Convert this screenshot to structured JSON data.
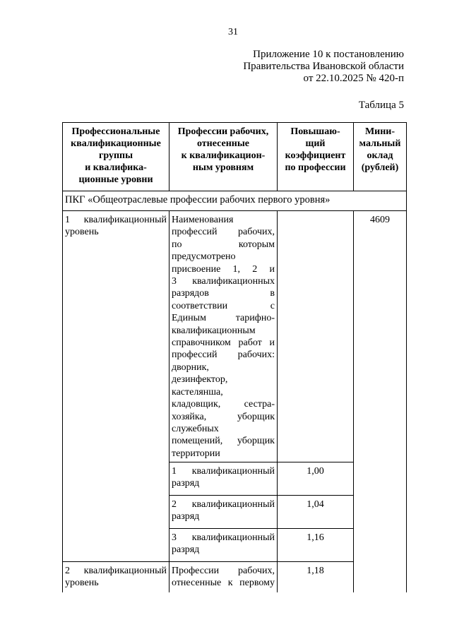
{
  "page_number": "31",
  "header": {
    "lines": [
      "Приложение 10 к постановлению",
      "Правительства Ивановской области",
      "от 22.10.2025 № 420-п"
    ]
  },
  "table_label": "Таблица 5",
  "table": {
    "columns": [
      [
        "Профессиональные",
        "квалификационные",
        "группы",
        "и квалифика-",
        "ционные уровни"
      ],
      [
        "Профессии рабочих,",
        "отнесенные",
        "к квалификацион-",
        "ным уровням"
      ],
      [
        "Повышаю-",
        "щий",
        "коэффициент",
        "по профессии"
      ],
      [
        "Мини-",
        "мальный",
        "оклад",
        "(рублей)"
      ]
    ],
    "group_title": "ПКГ «Общеотраслевые профессии рабочих первого уровня»",
    "level1": {
      "name": [
        "1 квалификационный",
        "уровень"
      ],
      "professions": [
        "Наименования",
        "профессий рабочих,",
        "по которым",
        "предусмотрено",
        "присвоение 1, 2 и",
        "3 квалификационных",
        "разрядов в",
        "соответствии с",
        "Единым тарифно-",
        "квалификационным",
        "справочником работ и",
        "профессий рабочих:",
        "дворник,",
        "дезинфектор,",
        "кастелянша,",
        "кладовщик, сестра-",
        "хозяйка, уборщик",
        "служебных",
        "помещений, уборщик",
        "территории"
      ],
      "salary": "4609",
      "grades": [
        {
          "name": [
            "1 квалификационный",
            "разряд"
          ],
          "coef": "1,00"
        },
        {
          "name": [
            "2 квалификационный",
            "разряд"
          ],
          "coef": "1,04"
        },
        {
          "name": [
            "3 квалификационный",
            "разряд"
          ],
          "coef": "1,16"
        }
      ]
    },
    "level2": {
      "name": [
        "2 квалификационный",
        "уровень"
      ],
      "professions": [
        "Профессии рабочих,",
        "отнесенные к первому"
      ],
      "coef": "1,18"
    }
  }
}
